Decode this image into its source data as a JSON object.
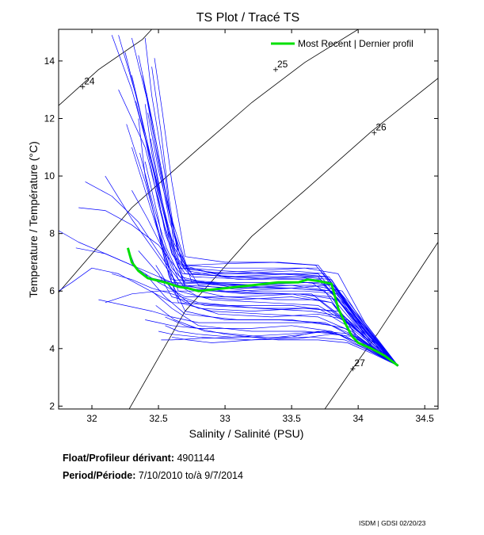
{
  "chart_data": {
    "type": "line",
    "title": "TS Plot / Tracé TS",
    "xlabel": "Salinity / Salinité (PSU)",
    "ylabel": "Temperature / Température (°C)",
    "xlim": [
      31.75,
      34.6
    ],
    "ylim": [
      1.9,
      15.1
    ],
    "xticks": [
      32,
      32.5,
      33,
      33.5,
      34,
      34.5
    ],
    "xtick_labels": [
      "32",
      "32.5",
      "33",
      "33.5",
      "34",
      "34.5"
    ],
    "yticks": [
      2,
      4,
      6,
      8,
      10,
      12,
      14
    ],
    "ytick_labels": [
      "2",
      "4",
      "6",
      "8",
      "10",
      "12",
      "14"
    ],
    "grid": false,
    "legend_position": "top-right",
    "density_contours": [
      {
        "label": "24",
        "x": [
          31.75,
          32.05,
          32.38,
          32.45
        ],
        "y": [
          12.45,
          13.7,
          14.75,
          15.1
        ],
        "label_x": 31.93,
        "label_y": 13.1
      },
      {
        "label": "25",
        "x": [
          31.75,
          32.3,
          32.8,
          33.2,
          33.6,
          34.0
        ],
        "y": [
          5.95,
          8.9,
          10.95,
          12.55,
          13.95,
          15.1
        ],
        "label_x": 33.38,
        "label_y": 13.7
      },
      {
        "label": "26",
        "x": [
          32.28,
          32.7,
          33.2,
          33.6,
          34.1,
          34.6
        ],
        "y": [
          1.9,
          5.3,
          7.9,
          9.5,
          11.55,
          13.4
        ],
        "label_x": 34.12,
        "label_y": 11.5
      },
      {
        "label": "27",
        "x": [
          33.75,
          33.95,
          34.15,
          34.35,
          34.6
        ],
        "y": [
          1.9,
          3.25,
          4.55,
          5.95,
          7.7
        ],
        "label_x": 33.96,
        "label_y": 3.3
      }
    ],
    "series": [
      {
        "name": "Most Recent | Dernier profil",
        "color": "#00e000",
        "x": [
          32.27,
          32.3,
          32.35,
          32.42,
          32.55,
          32.65,
          32.72,
          32.8,
          33.0,
          33.2,
          33.4,
          33.55,
          33.62,
          33.7,
          33.8,
          33.85,
          33.9,
          33.95,
          34.0,
          34.1,
          34.2,
          34.3
        ],
        "y": [
          7.5,
          7.0,
          6.7,
          6.45,
          6.3,
          6.15,
          6.1,
          6.0,
          6.1,
          6.2,
          6.3,
          6.3,
          6.4,
          6.35,
          6.25,
          5.4,
          4.9,
          4.45,
          4.2,
          4.0,
          3.75,
          3.4
        ]
      }
    ],
    "history_color": "#0000ff",
    "history_profiles": [
      {
        "x": [
          32.27,
          32.32,
          32.4,
          32.6,
          33.0,
          33.4,
          33.65,
          33.8,
          34.0,
          34.3
        ],
        "y": [
          7.5,
          6.9,
          6.5,
          6.3,
          6.2,
          6.25,
          6.3,
          5.8,
          4.3,
          3.4
        ]
      },
      {
        "x": [
          32.1,
          32.3,
          32.5,
          32.7,
          33.1,
          33.5,
          33.75,
          33.9,
          34.1,
          34.3
        ],
        "y": [
          5.6,
          5.9,
          6.0,
          6.0,
          6.0,
          6.1,
          6.2,
          5.5,
          4.2,
          3.4
        ]
      },
      {
        "x": [
          32.4,
          32.5,
          32.6,
          32.8,
          33.2,
          33.5,
          33.8,
          34.0,
          34.3
        ],
        "y": [
          5.0,
          4.9,
          4.8,
          4.7,
          4.7,
          4.8,
          4.6,
          4.2,
          3.4
        ]
      },
      {
        "x": [
          32.5,
          32.6,
          32.8,
          33.2,
          33.5,
          33.7,
          33.85,
          34.05,
          34.3
        ],
        "y": [
          4.6,
          4.5,
          4.4,
          4.3,
          4.4,
          4.6,
          4.5,
          4.0,
          3.4
        ]
      },
      {
        "x": [
          32.52,
          32.6,
          32.8,
          33.1,
          33.4,
          33.6,
          33.75,
          33.9,
          34.1,
          34.3
        ],
        "y": [
          4.3,
          4.3,
          4.35,
          4.4,
          4.4,
          4.5,
          4.6,
          4.45,
          3.9,
          3.4
        ]
      },
      {
        "x": [
          32.35,
          32.45,
          32.55,
          32.65,
          32.7,
          33.0,
          33.4,
          33.7,
          33.9,
          34.2,
          34.3
        ],
        "y": [
          14.2,
          12.0,
          9.5,
          7.4,
          6.9,
          6.8,
          6.8,
          6.8,
          5.6,
          3.7,
          3.4
        ]
      },
      {
        "x": [
          32.2,
          32.35,
          32.5,
          32.6,
          32.7,
          33.1,
          33.5,
          33.75,
          33.95,
          34.2,
          34.3
        ],
        "y": [
          14.9,
          12.5,
          9.0,
          7.3,
          6.6,
          6.5,
          6.5,
          6.5,
          5.3,
          3.7,
          3.4
        ]
      },
      {
        "x": [
          32.25,
          32.4,
          32.55,
          32.65,
          32.75,
          33.2,
          33.6,
          33.8,
          34.0,
          34.3
        ],
        "y": [
          14.3,
          11.5,
          8.5,
          7.0,
          6.5,
          6.4,
          6.45,
          6.3,
          5.0,
          3.4
        ]
      },
      {
        "x": [
          32.4,
          32.45,
          32.55,
          32.62,
          32.7,
          33.0,
          33.4,
          33.7,
          33.95,
          34.3
        ],
        "y": [
          14.8,
          12.8,
          10.0,
          7.5,
          6.9,
          6.95,
          7.0,
          6.9,
          5.4,
          3.4
        ]
      },
      {
        "x": [
          32.3,
          32.45,
          32.55,
          32.65,
          33.0,
          33.5,
          33.75,
          33.95,
          34.3
        ],
        "y": [
          13.5,
          10.5,
          8.0,
          6.8,
          6.6,
          6.7,
          6.6,
          5.3,
          3.4
        ]
      },
      {
        "x": [
          32.15,
          32.3,
          32.45,
          32.6,
          32.8,
          33.2,
          33.6,
          33.85,
          34.05,
          34.3
        ],
        "y": [
          14.9,
          13.0,
          10.5,
          7.8,
          6.2,
          6.0,
          6.0,
          5.9,
          4.6,
          3.4
        ]
      },
      {
        "x": [
          32.1,
          32.3,
          32.5,
          32.65,
          32.8,
          33.1,
          33.5,
          33.8,
          34.0,
          34.3
        ],
        "y": [
          10.0,
          8.5,
          7.2,
          6.2,
          5.8,
          5.7,
          5.8,
          5.6,
          4.6,
          3.4
        ]
      },
      {
        "x": [
          31.95,
          32.15,
          32.35,
          32.55,
          32.7,
          33.0,
          33.4,
          33.7,
          33.95,
          34.3
        ],
        "y": [
          9.8,
          9.3,
          8.4,
          7.0,
          6.1,
          5.8,
          5.7,
          5.7,
          4.8,
          3.4
        ]
      },
      {
        "x": [
          31.88,
          32.1,
          32.3,
          32.5,
          32.65,
          33.0,
          33.5,
          33.8,
          34.0,
          34.3
        ],
        "y": [
          7.5,
          7.3,
          6.9,
          6.5,
          6.2,
          6.0,
          5.9,
          5.6,
          4.4,
          3.4
        ]
      },
      {
        "x": [
          32.05,
          32.25,
          32.45,
          32.6,
          32.8,
          33.3,
          33.7,
          33.9,
          34.3
        ],
        "y": [
          5.7,
          5.5,
          5.3,
          5.1,
          4.9,
          4.9,
          4.9,
          4.7,
          3.4
        ]
      },
      {
        "x": [
          31.9,
          32.1,
          32.3,
          32.5,
          32.7,
          33.1,
          33.5,
          33.8,
          34.1,
          34.3
        ],
        "y": [
          8.9,
          8.8,
          8.3,
          7.6,
          6.4,
          6.1,
          6.1,
          6.0,
          4.1,
          3.4
        ]
      },
      {
        "x": [
          32.3,
          32.4,
          32.5,
          32.6,
          32.7,
          33.2,
          33.6,
          33.8,
          34.0,
          34.3
        ],
        "y": [
          11.0,
          9.5,
          8.0,
          6.8,
          6.3,
          6.3,
          6.3,
          6.2,
          4.8,
          3.4
        ]
      },
      {
        "x": [
          32.4,
          32.45,
          32.55,
          32.6,
          32.7,
          33.0,
          33.4,
          33.7,
          33.95,
          34.3
        ],
        "y": [
          12.5,
          10.8,
          8.6,
          7.3,
          6.8,
          6.7,
          6.6,
          6.5,
          5.1,
          3.4
        ]
      },
      {
        "x": [
          32.45,
          32.52,
          32.58,
          32.65,
          32.75,
          33.2,
          33.6,
          33.85,
          34.05,
          34.3
        ],
        "y": [
          13.8,
          11.5,
          9.2,
          7.1,
          6.6,
          6.7,
          6.8,
          6.6,
          4.9,
          3.4
        ]
      },
      {
        "x": [
          32.35,
          32.4,
          32.5,
          32.6,
          33.0,
          33.5,
          33.75,
          33.9,
          34.3
        ],
        "y": [
          12.0,
          10.0,
          8.0,
          6.4,
          6.2,
          6.1,
          6.0,
          5.0,
          3.4
        ]
      },
      {
        "x": [
          32.4,
          32.5,
          32.55,
          32.65,
          32.9,
          33.3,
          33.7,
          33.95,
          34.3
        ],
        "y": [
          10.5,
          8.5,
          7.2,
          6.0,
          5.7,
          5.6,
          5.5,
          4.8,
          3.4
        ]
      },
      {
        "x": [
          32.45,
          32.55,
          32.65,
          32.9,
          33.3,
          33.7,
          33.95,
          34.3
        ],
        "y": [
          9.0,
          7.0,
          5.6,
          5.3,
          5.2,
          5.1,
          4.6,
          3.4
        ]
      },
      {
        "x": [
          32.5,
          32.58,
          32.7,
          33.0,
          33.4,
          33.75,
          33.95,
          34.3
        ],
        "y": [
          8.0,
          6.5,
          5.3,
          5.0,
          5.0,
          4.9,
          4.5,
          3.4
        ]
      },
      {
        "x": [
          32.2,
          32.4,
          32.55,
          32.7,
          33.1,
          33.5,
          33.8,
          34.05,
          34.3
        ],
        "y": [
          13.0,
          11.0,
          8.2,
          6.2,
          6.1,
          6.2,
          6.0,
          4.5,
          3.4
        ]
      },
      {
        "x": [
          32.38,
          32.48,
          32.58,
          32.68,
          33.0,
          33.45,
          33.72,
          33.92,
          34.3
        ],
        "y": [
          13.5,
          11.0,
          8.8,
          6.9,
          6.5,
          6.4,
          6.4,
          5.3,
          3.4
        ]
      },
      {
        "x": [
          32.42,
          32.5,
          32.62,
          32.72,
          33.1,
          33.55,
          33.8,
          34.0,
          34.3
        ],
        "y": [
          12.2,
          10.2,
          8.0,
          6.7,
          6.4,
          6.5,
          6.4,
          5.0,
          3.4
        ]
      },
      {
        "x": [
          32.3,
          32.42,
          32.55,
          32.62,
          32.9,
          33.3,
          33.65,
          33.88,
          34.3
        ],
        "y": [
          9.5,
          8.5,
          7.3,
          6.3,
          6.0,
          5.9,
          5.9,
          5.1,
          3.4
        ]
      },
      {
        "x": [
          32.35,
          32.5,
          32.6,
          32.85,
          33.3,
          33.7,
          33.95,
          34.3
        ],
        "y": [
          7.4,
          6.6,
          5.8,
          5.5,
          5.4,
          5.4,
          4.7,
          3.4
        ]
      },
      {
        "x": [
          32.4,
          32.55,
          32.7,
          33.1,
          33.5,
          33.8,
          34.0,
          34.3
        ],
        "y": [
          6.6,
          5.8,
          5.2,
          5.0,
          5.0,
          4.8,
          4.3,
          3.4
        ]
      },
      {
        "x": [
          32.45,
          32.6,
          32.8,
          33.2,
          33.6,
          33.85,
          34.05,
          34.3
        ],
        "y": [
          6.0,
          5.4,
          4.8,
          4.6,
          4.6,
          4.5,
          4.1,
          3.4
        ]
      },
      {
        "x": [
          32.48,
          32.62,
          32.85,
          33.3,
          33.65,
          33.9,
          34.1,
          34.3
        ],
        "y": [
          5.5,
          5.0,
          4.6,
          4.4,
          4.4,
          4.3,
          3.9,
          3.4
        ]
      },
      {
        "x": [
          32.55,
          32.7,
          33.0,
          33.4,
          33.7,
          33.92,
          34.12,
          34.3
        ],
        "y": [
          5.1,
          4.8,
          4.5,
          4.3,
          4.3,
          4.2,
          3.8,
          3.4
        ]
      },
      {
        "x": [
          32.3,
          32.45,
          32.58,
          32.75,
          33.2,
          33.6,
          33.82,
          34.0,
          34.3
        ],
        "y": [
          14.8,
          12.0,
          8.8,
          6.3,
          6.2,
          6.3,
          6.2,
          5.0,
          3.4
        ]
      },
      {
        "x": [
          32.26,
          32.4,
          32.52,
          32.65,
          32.95,
          33.4,
          33.72,
          33.95,
          34.3
        ],
        "y": [
          11.8,
          9.8,
          7.8,
          6.4,
          6.3,
          6.3,
          6.3,
          5.2,
          3.4
        ]
      },
      {
        "x": [
          32.33,
          32.45,
          32.57,
          32.68,
          33.05,
          33.5,
          33.78,
          33.98,
          34.3
        ],
        "y": [
          12.6,
          10.4,
          8.1,
          6.6,
          6.5,
          6.6,
          6.5,
          5.2,
          3.4
        ]
      },
      {
        "x": [
          32.47,
          32.53,
          32.6,
          32.7,
          33.0,
          33.35,
          33.68,
          33.93,
          34.3
        ],
        "y": [
          14.1,
          12.2,
          9.8,
          7.2,
          7.0,
          7.0,
          6.9,
          5.6,
          3.4
        ]
      },
      {
        "x": [
          32.44,
          32.52,
          32.6,
          32.7,
          33.15,
          33.55,
          33.8,
          34.0,
          34.3
        ],
        "y": [
          11.3,
          9.3,
          7.6,
          6.1,
          5.9,
          5.9,
          5.8,
          4.7,
          3.4
        ]
      },
      {
        "x": [
          31.75,
          31.85,
          32.0,
          32.2,
          32.4,
          32.6,
          33.0,
          33.5,
          33.8,
          34.05,
          34.3
        ],
        "y": [
          6.0,
          6.3,
          6.8,
          6.6,
          6.1,
          5.6,
          5.5,
          5.5,
          5.3,
          4.4,
          3.4
        ]
      },
      {
        "x": [
          31.75,
          31.9,
          32.1,
          32.3,
          32.5,
          32.7,
          33.1,
          33.55,
          33.85,
          34.05,
          34.3
        ],
        "y": [
          8.1,
          7.7,
          7.3,
          6.9,
          6.3,
          5.8,
          5.8,
          5.9,
          5.7,
          4.5,
          3.4
        ]
      },
      {
        "x": [
          32.15,
          32.3,
          32.45,
          32.6,
          32.8,
          33.25,
          33.65,
          33.9,
          34.1,
          34.3
        ],
        "y": [
          6.6,
          6.4,
          6.1,
          5.9,
          5.6,
          5.4,
          5.3,
          5.1,
          4.1,
          3.4
        ]
      },
      {
        "x": [
          32.48,
          32.56,
          32.66,
          32.8,
          33.2,
          33.6,
          33.85,
          34.05,
          34.3
        ],
        "y": [
          6.9,
          6.3,
          5.7,
          5.4,
          5.3,
          5.4,
          5.3,
          4.5,
          3.4
        ]
      },
      {
        "x": [
          32.52,
          32.62,
          32.75,
          32.95,
          33.35,
          33.7,
          33.92,
          34.1,
          34.3
        ],
        "y": [
          6.5,
          6.0,
          5.5,
          5.2,
          5.1,
          5.2,
          5.0,
          4.2,
          3.4
        ]
      },
      {
        "x": [
          32.55,
          32.65,
          32.8,
          33.05,
          33.45,
          33.75,
          33.95,
          34.12,
          34.3
        ],
        "y": [
          4.8,
          4.6,
          4.5,
          4.4,
          4.5,
          4.6,
          4.5,
          3.9,
          3.4
        ]
      },
      {
        "x": [
          32.6,
          32.72,
          32.9,
          33.2,
          33.55,
          33.8,
          34.0,
          34.15,
          34.3
        ],
        "y": [
          4.4,
          4.3,
          4.2,
          4.3,
          4.35,
          4.5,
          4.4,
          3.8,
          3.4
        ]
      },
      {
        "x": [
          32.36,
          32.46,
          32.56,
          32.66,
          32.85,
          33.25,
          33.65,
          33.88,
          34.08,
          34.3
        ],
        "y": [
          10.8,
          9.0,
          7.5,
          6.5,
          6.3,
          6.2,
          6.2,
          6.0,
          4.6,
          3.4
        ]
      },
      {
        "x": [
          32.41,
          32.49,
          32.58,
          32.69,
          32.95,
          33.35,
          33.7,
          33.93,
          34.3
        ],
        "y": [
          12.9,
          10.7,
          8.5,
          6.8,
          6.6,
          6.6,
          6.6,
          5.4,
          3.4
        ]
      }
    ]
  },
  "float_info": {
    "float_label": "Float/Profileur dérivant:",
    "float_id": "4901144",
    "period_label": "Period/Période:",
    "period_value": "7/10/2010  to/à  9/7/2014"
  },
  "credit": "ISDM | GDSI  02/20/23"
}
